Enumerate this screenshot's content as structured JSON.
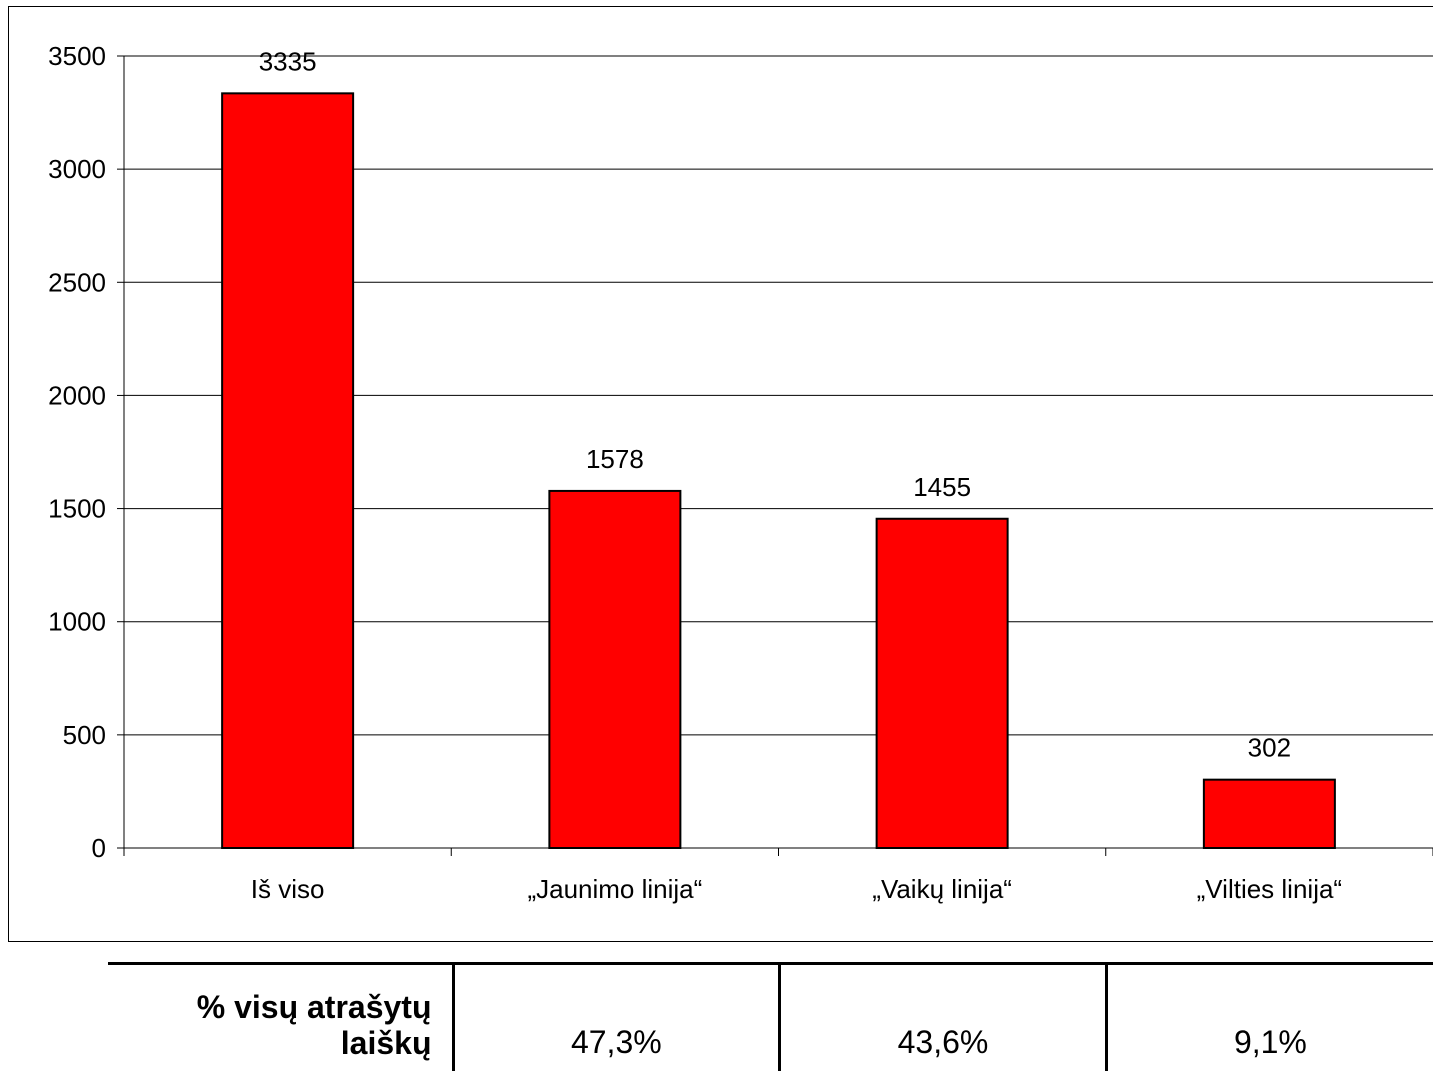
{
  "chart_data": {
    "type": "bar",
    "categories": [
      "Iš viso",
      "„Jaunimo linija“",
      "„Vaikų linija“",
      "„Vilties linija“"
    ],
    "values": [
      3335,
      1578,
      1455,
      302
    ],
    "data_labels": [
      "3335",
      "1578",
      "1455",
      "302"
    ],
    "y_ticks": [
      "0",
      "500",
      "1000",
      "1500",
      "2000",
      "2500",
      "3000",
      "3500"
    ],
    "ylim": [
      0,
      3500
    ],
    "title": "",
    "xlabel": "",
    "ylabel": "",
    "grid": true,
    "bar_color": "#ff0000",
    "legend": "none"
  },
  "summary_table": {
    "row_header": "% visų atrašytų laiškų",
    "values": [
      "47,3%",
      "43,6%",
      "9,1%"
    ]
  }
}
